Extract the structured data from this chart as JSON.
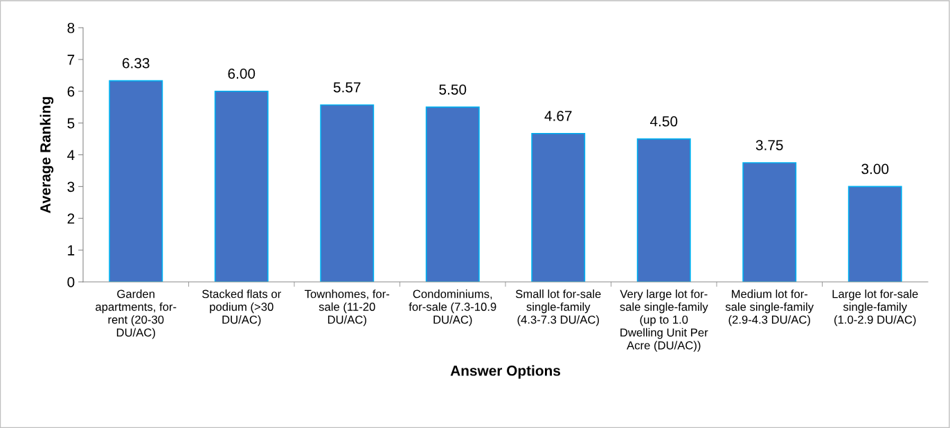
{
  "chart_data": {
    "type": "bar",
    "xlabel": "Answer Options",
    "ylabel": "Average Ranking",
    "categories": [
      "Garden\napartments, for-\nrent (20-30\nDU/AC)",
      "Stacked flats or\npodium (>30\nDU/AC)",
      "Townhomes, for-\nsale (11-20\nDU/AC)",
      "Condominiums,\nfor-sale (7.3-10.9\nDU/AC)",
      "Small lot for-sale\nsingle-family\n(4.3-7.3 DU/AC)",
      "Very large lot for-\nsale single-family\n(up to 1.0\nDwelling Unit Per\nAcre (DU/AC))",
      "Medium lot for-\nsale single-family\n(2.9-4.3 DU/AC)",
      "Large lot for-sale\nsingle-family\n(1.0-2.9 DU/AC)"
    ],
    "values": [
      6.33,
      6.0,
      5.57,
      5.5,
      4.67,
      4.5,
      3.75,
      3.0
    ],
    "value_labels": [
      "6.33",
      "6.00",
      "5.57",
      "5.50",
      "4.67",
      "4.50",
      "3.75",
      "3.00"
    ],
    "color": "#4472c4",
    "ylim": [
      0,
      8
    ],
    "yticks": [
      0,
      1,
      2,
      3,
      4,
      5,
      6,
      7,
      8
    ],
    "grid": false,
    "legend": false
  }
}
